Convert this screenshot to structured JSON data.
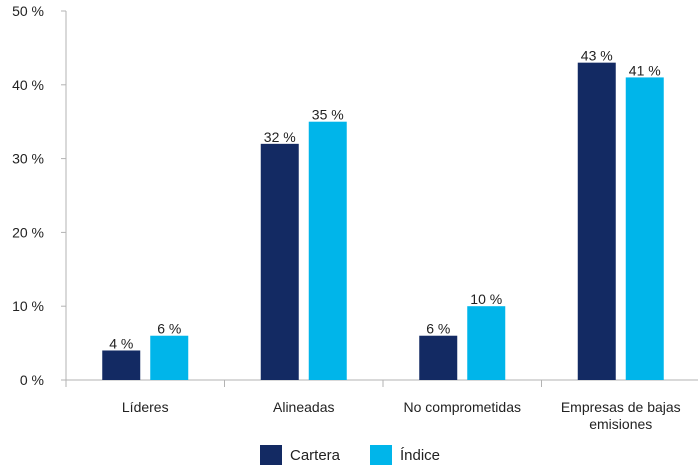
{
  "chart_data": {
    "type": "bar",
    "categories": [
      [
        "Líderes"
      ],
      [
        "Alineadas"
      ],
      [
        "No comprometidas"
      ],
      [
        "Empresas de bajas",
        "emisiones"
      ]
    ],
    "series": [
      {
        "name": "Cartera",
        "values": [
          4,
          32,
          6,
          43
        ],
        "labels": [
          "4 %",
          "32 %",
          "6 %",
          "43 %"
        ],
        "color": "#132a63"
      },
      {
        "name": "Índice",
        "values": [
          6,
          35,
          10,
          41
        ],
        "labels": [
          "6 %",
          "35 %",
          "10 %",
          "41 %"
        ],
        "color": "#00b5ea"
      }
    ],
    "ylim": [
      0,
      50
    ],
    "yticks": [
      0,
      10,
      20,
      30,
      40,
      50
    ],
    "ytick_labels": [
      "0 %",
      "10 %",
      "20 %",
      "30 %",
      "40 %",
      "50 %"
    ],
    "grid": false,
    "legend_position": "bottom-center",
    "axis_color": "#b3b3b3"
  }
}
